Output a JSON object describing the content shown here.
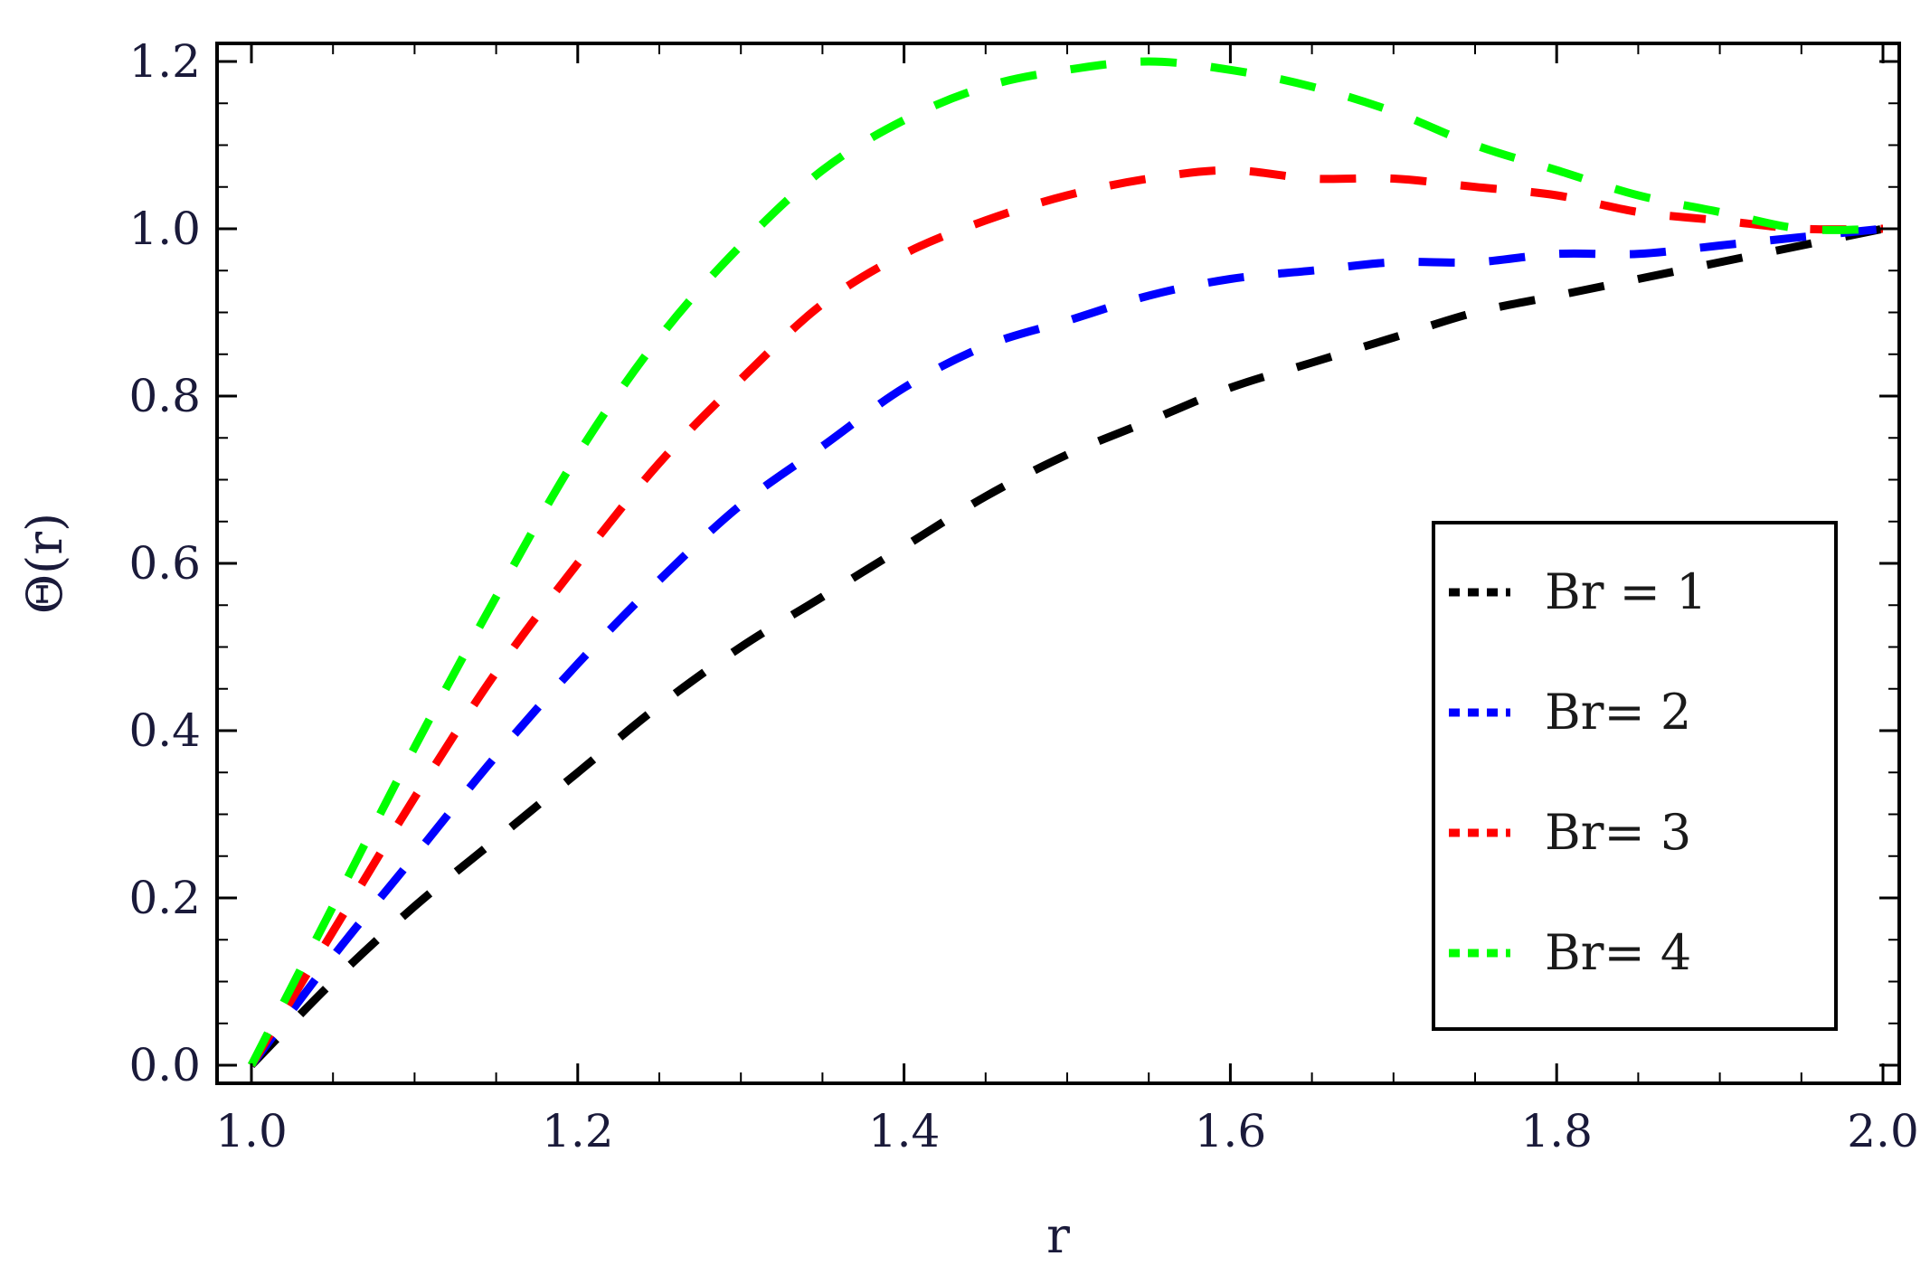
{
  "chart_data": {
    "type": "line",
    "xlabel": "r",
    "ylabel": "Θ(r)",
    "xlim": [
      1.0,
      2.0
    ],
    "ylim": [
      0.0,
      1.2
    ],
    "xticks": [
      "1.0",
      "1.2",
      "1.4",
      "1.6",
      "1.8",
      "2.0"
    ],
    "yticks": [
      "0.0",
      "0.2",
      "0.4",
      "0.6",
      "0.8",
      "1.0",
      "1.2"
    ],
    "grid": false,
    "legend_position": "right",
    "line_style": "dashed",
    "x": [
      1.0,
      1.05,
      1.1,
      1.15,
      1.2,
      1.25,
      1.3,
      1.35,
      1.4,
      1.45,
      1.5,
      1.55,
      1.6,
      1.65,
      1.7,
      1.75,
      1.8,
      1.85,
      1.9,
      1.95,
      2.0
    ],
    "series": [
      {
        "name": "Br = 1",
        "color": "#000000",
        "values": [
          0.0,
          0.1,
          0.19,
          0.27,
          0.35,
          0.43,
          0.5,
          0.56,
          0.62,
          0.68,
          0.73,
          0.77,
          0.81,
          0.84,
          0.87,
          0.9,
          0.92,
          0.94,
          0.96,
          0.98,
          1.0
        ]
      },
      {
        "name": "Br= 2",
        "color": "#0000ff",
        "values": [
          0.0,
          0.13,
          0.25,
          0.37,
          0.48,
          0.58,
          0.67,
          0.74,
          0.81,
          0.86,
          0.89,
          0.92,
          0.94,
          0.95,
          0.96,
          0.96,
          0.97,
          0.97,
          0.98,
          0.99,
          1.0
        ]
      },
      {
        "name": "Br= 3",
        "color": "#ff0000",
        "values": [
          0.0,
          0.16,
          0.32,
          0.47,
          0.6,
          0.72,
          0.82,
          0.91,
          0.97,
          1.01,
          1.04,
          1.06,
          1.07,
          1.06,
          1.06,
          1.05,
          1.04,
          1.02,
          1.01,
          1.0,
          1.0
        ]
      },
      {
        "name": "Br= 4",
        "color": "#00ff00",
        "values": [
          0.0,
          0.19,
          0.38,
          0.56,
          0.73,
          0.87,
          0.98,
          1.07,
          1.13,
          1.17,
          1.19,
          1.2,
          1.19,
          1.17,
          1.14,
          1.1,
          1.07,
          1.04,
          1.02,
          1.0,
          1.0
        ]
      }
    ]
  }
}
